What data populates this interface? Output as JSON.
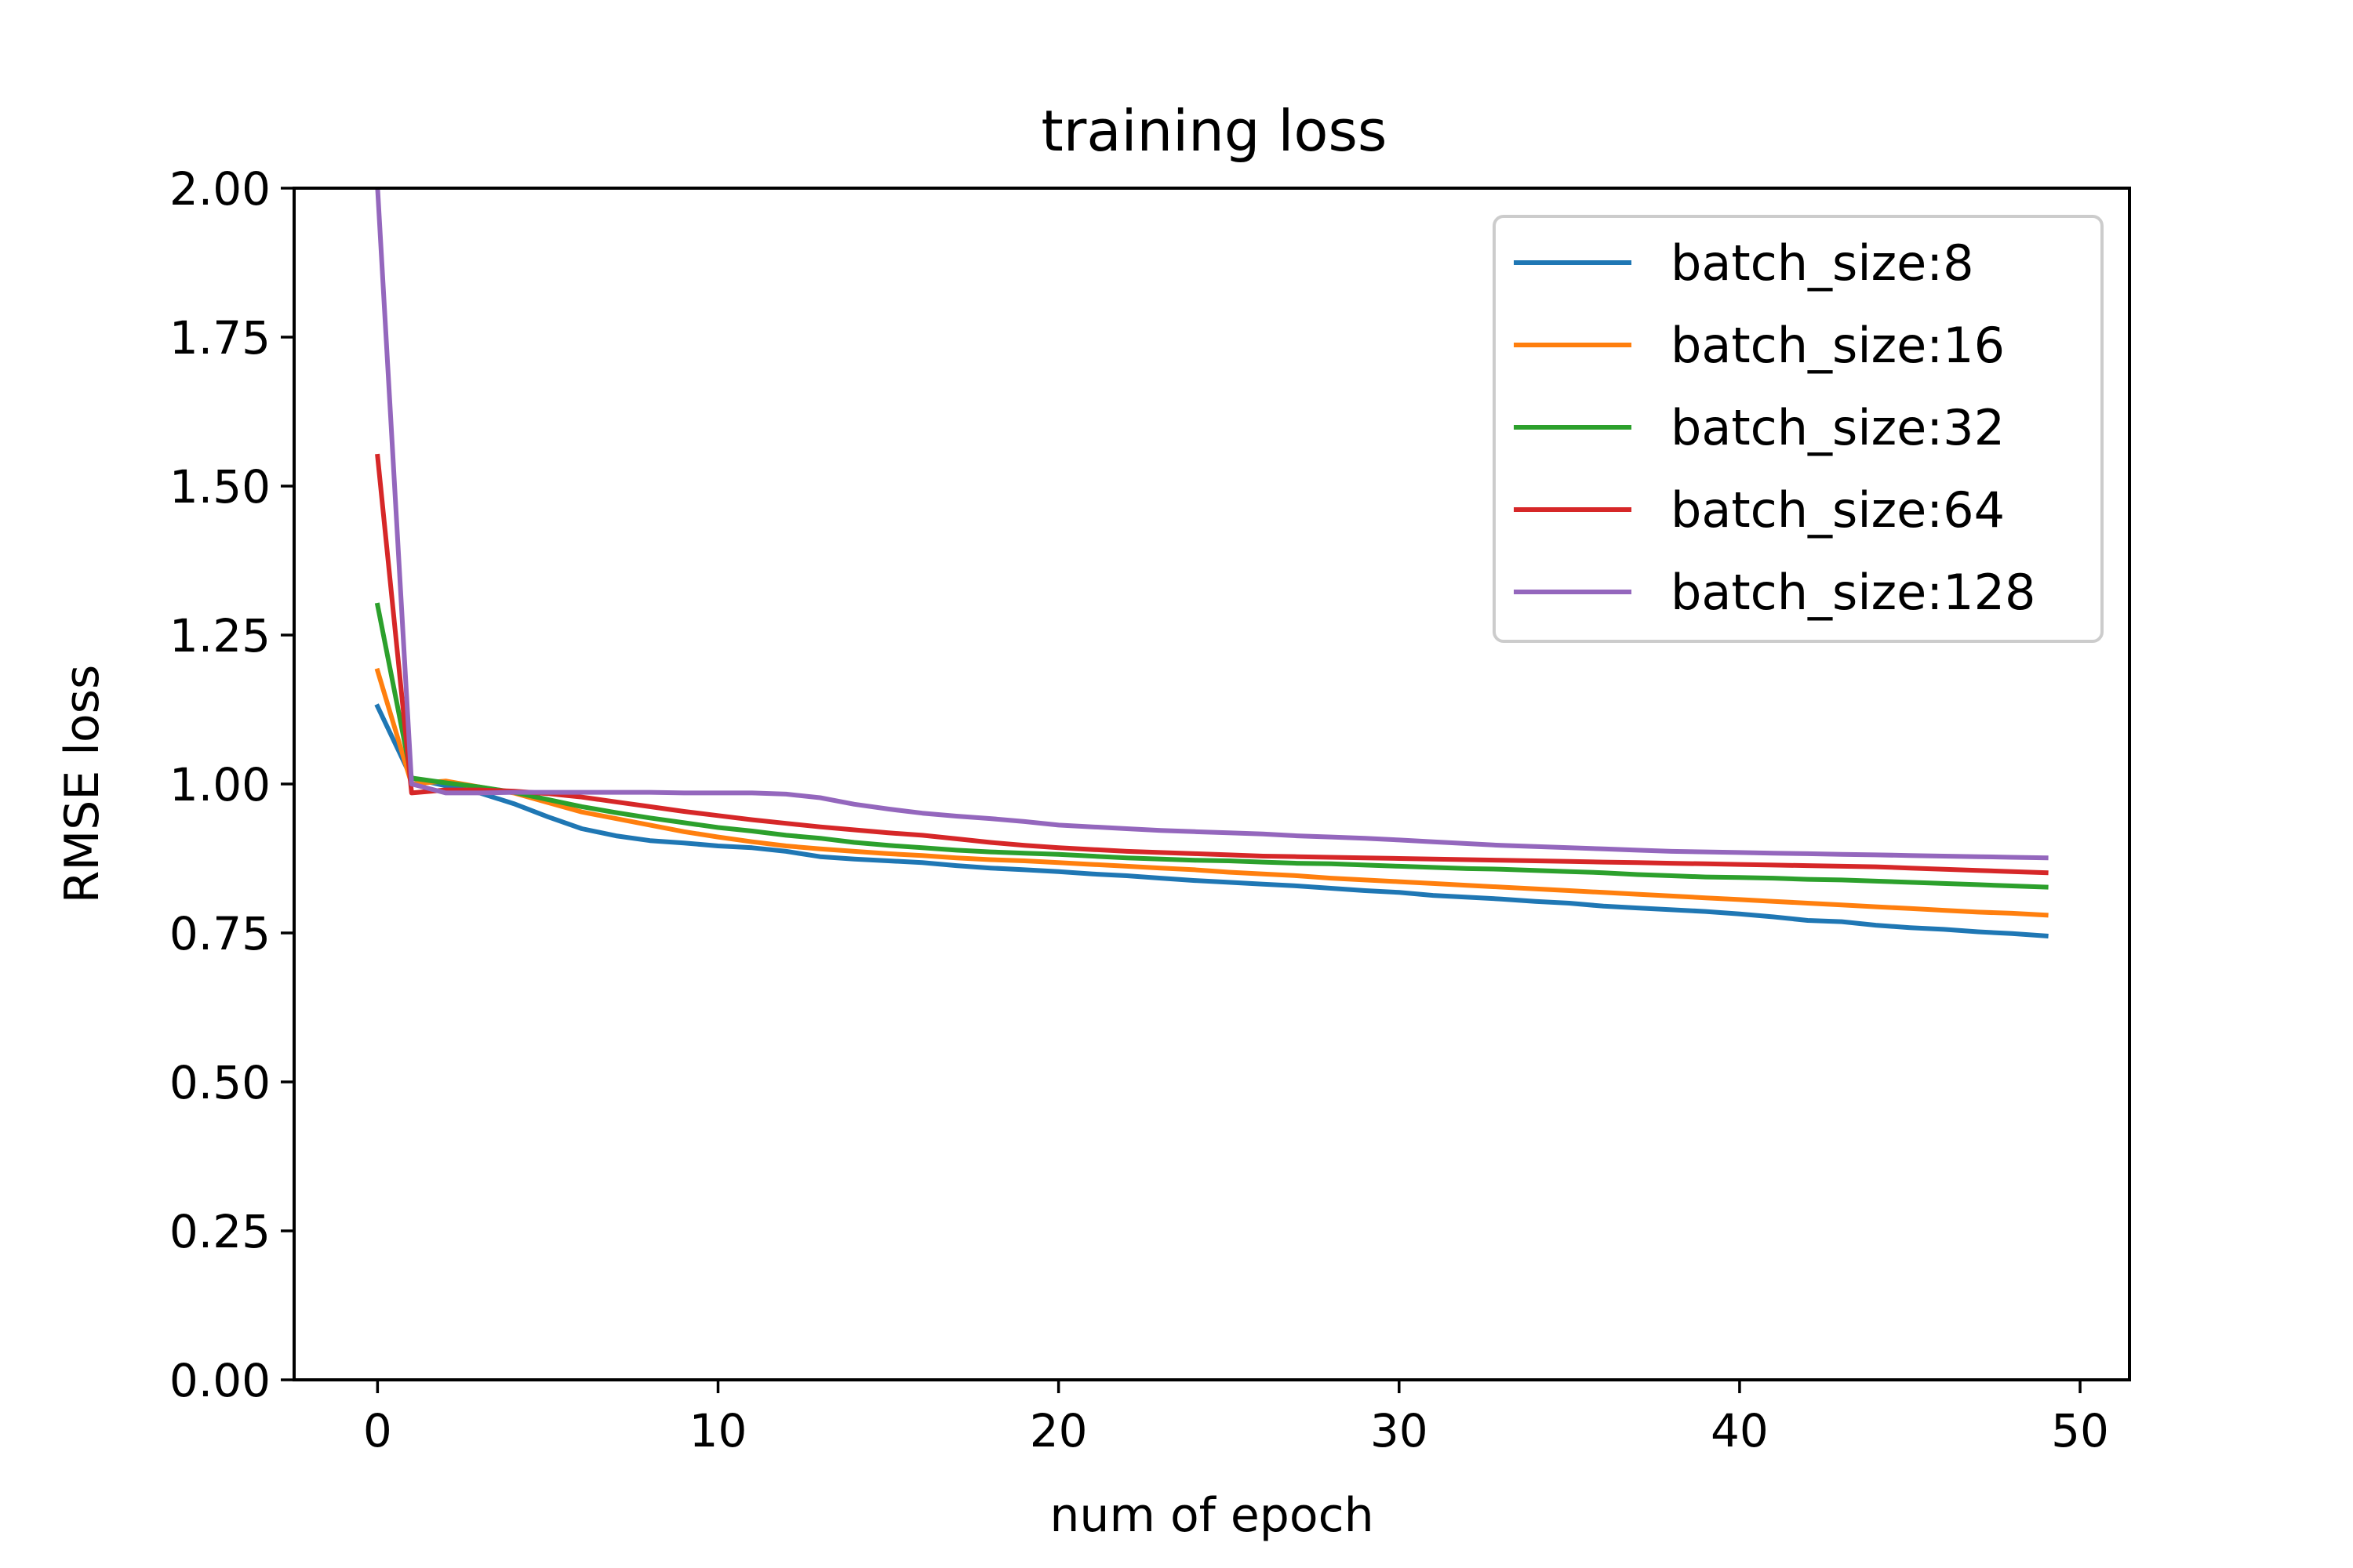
{
  "chart_data": {
    "type": "line",
    "title": "training loss",
    "xlabel": "num of epoch",
    "ylabel": "RMSE loss",
    "xlim": [
      -2.45,
      51.45
    ],
    "ylim": [
      0,
      2.0
    ],
    "xticks": [
      0,
      10,
      20,
      30,
      40,
      50
    ],
    "yticks": [
      0.0,
      0.25,
      0.5,
      0.75,
      1.0,
      1.25,
      1.5,
      1.75,
      2.0
    ],
    "xtick_labels": [
      "0",
      "10",
      "20",
      "30",
      "40",
      "50"
    ],
    "ytick_labels": [
      "0.00",
      "0.25",
      "0.50",
      "0.75",
      "1.00",
      "1.25",
      "1.50",
      "1.75",
      "2.00"
    ],
    "grid": false,
    "legend_position": "top-right",
    "x": [
      0,
      1,
      2,
      3,
      4,
      5,
      6,
      7,
      8,
      9,
      10,
      11,
      12,
      13,
      14,
      15,
      16,
      17,
      18,
      19,
      20,
      21,
      22,
      23,
      24,
      25,
      26,
      27,
      28,
      29,
      30,
      31,
      32,
      33,
      34,
      35,
      36,
      37,
      38,
      39,
      40,
      41,
      42,
      43,
      44,
      45,
      46,
      47,
      48,
      49
    ],
    "series": [
      {
        "name": "batch_size:8",
        "color": "#1f77b4",
        "values": [
          1.13,
          1.01,
          0.997,
          0.985,
          0.967,
          0.945,
          0.925,
          0.913,
          0.905,
          0.901,
          0.896,
          0.893,
          0.887,
          0.878,
          0.874,
          0.871,
          0.868,
          0.863,
          0.859,
          0.856,
          0.853,
          0.849,
          0.846,
          0.842,
          0.838,
          0.835,
          0.832,
          0.829,
          0.825,
          0.821,
          0.818,
          0.813,
          0.81,
          0.807,
          0.803,
          0.8,
          0.795,
          0.792,
          0.789,
          0.786,
          0.782,
          0.777,
          0.771,
          0.769,
          0.763,
          0.759,
          0.756,
          0.752,
          0.749,
          0.745
        ]
      },
      {
        "name": "batch_size:16",
        "color": "#ff7f0e",
        "values": [
          1.19,
          1.0,
          1.005,
          0.995,
          0.985,
          0.969,
          0.953,
          0.942,
          0.931,
          0.92,
          0.911,
          0.903,
          0.896,
          0.891,
          0.887,
          0.883,
          0.88,
          0.876,
          0.873,
          0.871,
          0.868,
          0.865,
          0.862,
          0.859,
          0.856,
          0.852,
          0.849,
          0.846,
          0.842,
          0.839,
          0.836,
          0.833,
          0.83,
          0.827,
          0.824,
          0.821,
          0.818,
          0.815,
          0.812,
          0.809,
          0.806,
          0.803,
          0.8,
          0.797,
          0.794,
          0.791,
          0.788,
          0.785,
          0.783,
          0.78
        ]
      },
      {
        "name": "batch_size:32",
        "color": "#2ca02c",
        "values": [
          1.3,
          1.01,
          1.002,
          0.995,
          0.986,
          0.974,
          0.962,
          0.952,
          0.943,
          0.935,
          0.927,
          0.921,
          0.914,
          0.909,
          0.902,
          0.897,
          0.893,
          0.889,
          0.886,
          0.884,
          0.882,
          0.879,
          0.876,
          0.874,
          0.872,
          0.871,
          0.869,
          0.867,
          0.866,
          0.864,
          0.862,
          0.86,
          0.858,
          0.857,
          0.855,
          0.853,
          0.851,
          0.848,
          0.846,
          0.844,
          0.843,
          0.842,
          0.84,
          0.839,
          0.837,
          0.835,
          0.833,
          0.831,
          0.829,
          0.827
        ]
      },
      {
        "name": "batch_size:64",
        "color": "#d62728",
        "values": [
          1.55,
          0.985,
          0.99,
          0.99,
          0.988,
          0.984,
          0.978,
          0.97,
          0.962,
          0.954,
          0.947,
          0.94,
          0.934,
          0.928,
          0.923,
          0.918,
          0.914,
          0.908,
          0.902,
          0.897,
          0.893,
          0.89,
          0.887,
          0.885,
          0.883,
          0.881,
          0.879,
          0.878,
          0.877,
          0.876,
          0.875,
          0.874,
          0.873,
          0.872,
          0.871,
          0.87,
          0.869,
          0.868,
          0.867,
          0.866,
          0.865,
          0.864,
          0.863,
          0.862,
          0.861,
          0.859,
          0.857,
          0.855,
          0.853,
          0.851
        ]
      },
      {
        "name": "batch_size:128",
        "color": "#9467bd",
        "values": [
          2.0,
          1.0,
          0.985,
          0.985,
          0.986,
          0.986,
          0.986,
          0.986,
          0.986,
          0.985,
          0.985,
          0.985,
          0.983,
          0.977,
          0.966,
          0.958,
          0.951,
          0.946,
          0.942,
          0.937,
          0.931,
          0.928,
          0.925,
          0.922,
          0.92,
          0.918,
          0.916,
          0.913,
          0.911,
          0.909,
          0.906,
          0.903,
          0.9,
          0.897,
          0.895,
          0.893,
          0.891,
          0.889,
          0.887,
          0.886,
          0.885,
          0.884,
          0.883,
          0.882,
          0.881,
          0.88,
          0.879,
          0.878,
          0.877,
          0.876
        ]
      }
    ]
  }
}
